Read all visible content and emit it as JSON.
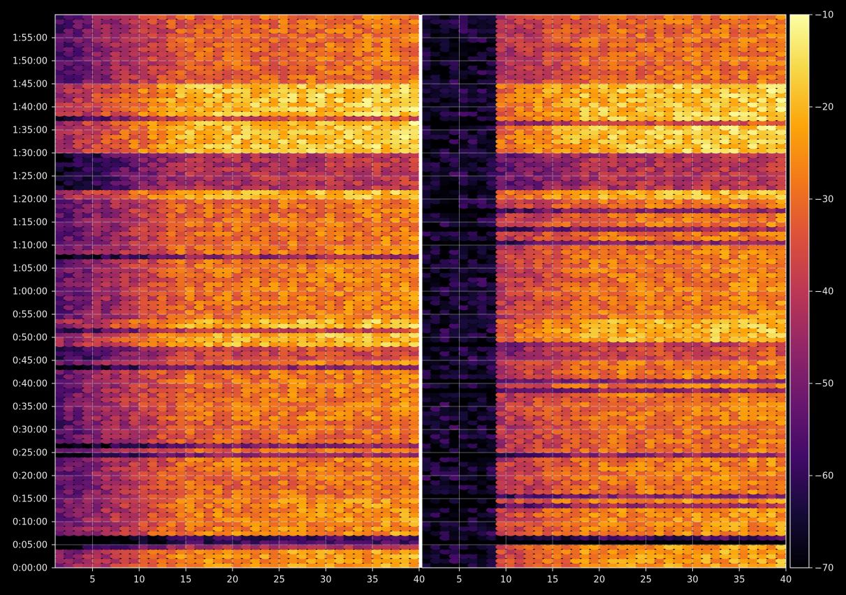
{
  "chart_data": {
    "type": "heatmap",
    "title": "",
    "panels": [
      {
        "name": "left",
        "xlim": [
          1,
          40
        ],
        "x_ticks": [
          5,
          10,
          15,
          20,
          25,
          30,
          35,
          40
        ]
      },
      {
        "name": "right",
        "xlim": [
          1,
          40
        ],
        "x_ticks": [
          5,
          10,
          15,
          20,
          25,
          30,
          35,
          40
        ]
      }
    ],
    "y_axis": {
      "range_seconds": [
        0,
        7200
      ],
      "tick_labels": [
        "0:00:00",
        "0:05:00",
        "0:10:00",
        "0:15:00",
        "0:20:00",
        "0:25:00",
        "0:30:00",
        "0:35:00",
        "0:40:00",
        "0:45:00",
        "0:50:00",
        "0:55:00",
        "1:00:00",
        "1:05:00",
        "1:10:00",
        "1:15:00",
        "1:20:00",
        "1:25:00",
        "1:30:00",
        "1:35:00",
        "1:40:00",
        "1:45:00",
        "1:50:00",
        "1:55:00"
      ]
    },
    "colorbar": {
      "colormap": "inferno",
      "range": [
        -70,
        -10
      ],
      "ticks": [
        -70,
        -60,
        -50,
        -40,
        -30,
        -20,
        -10
      ],
      "tick_labels": [
        "−70",
        "−60",
        "−50",
        "−40",
        "−30",
        "−20",
        "−10"
      ]
    },
    "grid": true,
    "row_intensity_by_minute_band": [
      {
        "from_min": 0,
        "to_min": 5,
        "level": -28
      },
      {
        "from_min": 5,
        "to_min": 7,
        "level": -62
      },
      {
        "from_min": 7,
        "to_min": 15,
        "level": -30
      },
      {
        "from_min": 15,
        "to_min": 19,
        "level": -33
      },
      {
        "from_min": 19,
        "to_min": 25,
        "level": -32
      },
      {
        "from_min": 25,
        "to_min": 32,
        "level": -34
      },
      {
        "from_min": 32,
        "to_min": 45,
        "level": -32
      },
      {
        "from_min": 45,
        "to_min": 48,
        "level": -40
      },
      {
        "from_min": 48,
        "to_min": 54,
        "level": -24
      },
      {
        "from_min": 54,
        "to_min": 69,
        "level": -32
      },
      {
        "from_min": 69,
        "to_min": 80,
        "level": -33
      },
      {
        "from_min": 80,
        "to_min": 82,
        "level": -24
      },
      {
        "from_min": 82,
        "to_min": 90,
        "level": -45
      },
      {
        "from_min": 90,
        "to_min": 105,
        "level": -22
      },
      {
        "from_min": 105,
        "to_min": 120,
        "level": -34
      }
    ],
    "x_gradient": {
      "left_panel_edge_drop": -22,
      "right_panel_dark_until_x": 9,
      "right_panel_dark_level": -66
    }
  },
  "colors": {
    "background": "#000000",
    "text": "#e8e8e8",
    "grid": "#ffffff",
    "gap": "#ffffff"
  }
}
